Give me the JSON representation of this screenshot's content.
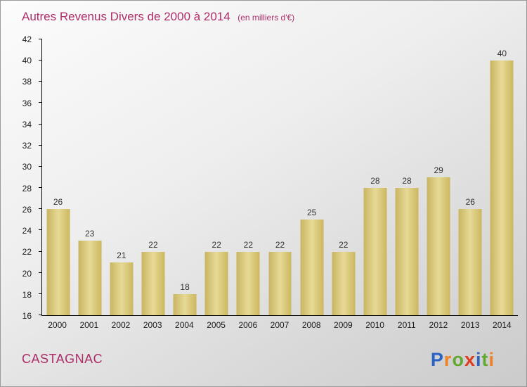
{
  "header": {
    "title": "Autres Revenus Divers de 2000 à 2014",
    "subtitle": "(en milliers d'€)"
  },
  "footer": {
    "location": "CASTAGNAC",
    "logo": {
      "name": "Proxiti",
      "letters": [
        {
          "ch": "P",
          "color": "#2a63c5"
        },
        {
          "ch": "r",
          "color": "#f08122"
        },
        {
          "ch": "o",
          "color": "#63a833"
        },
        {
          "ch": "x",
          "color": "#e03b1f"
        },
        {
          "ch": "i",
          "color": "#2a63c5"
        },
        {
          "ch": "t",
          "color": "#63a833"
        },
        {
          "ch": "i",
          "color": "#f08122"
        }
      ]
    }
  },
  "chart_data": {
    "type": "bar",
    "title": "Autres Revenus Divers de 2000 à 2014",
    "subtitle": "(en milliers d'€)",
    "categories": [
      "2000",
      "2001",
      "2002",
      "2003",
      "2004",
      "2005",
      "2006",
      "2007",
      "2008",
      "2009",
      "2010",
      "2011",
      "2012",
      "2013",
      "2014"
    ],
    "values": [
      26,
      23,
      21,
      22,
      18,
      22,
      22,
      22,
      25,
      22,
      28,
      28,
      29,
      26,
      40
    ],
    "xlabel": "",
    "ylabel": "",
    "ylim": [
      16,
      42
    ],
    "ytick_step": 2,
    "yticks": [
      16,
      18,
      20,
      22,
      24,
      26,
      28,
      30,
      32,
      34,
      36,
      38,
      40,
      42
    ],
    "grid": false,
    "legend": false,
    "bar_color": "#d7c67b",
    "value_label_color": "#333333",
    "title_color": "#ad2d69"
  }
}
